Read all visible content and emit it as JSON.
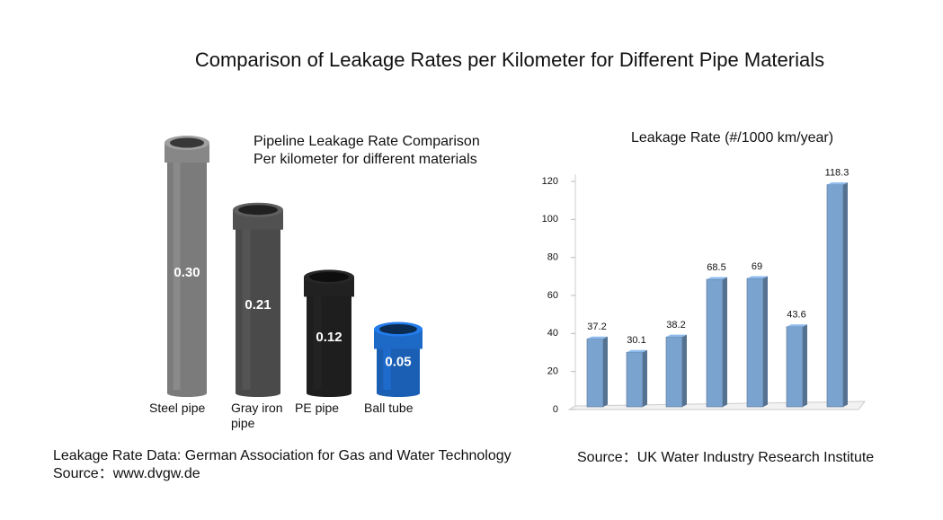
{
  "title": "Comparison of Leakage Rates per Kilometer for Different Pipe Materials",
  "chart_data": [
    {
      "type": "pipes",
      "title": "Pipeline Leakage Rate Comparison",
      "subtitle": "Per kilometer for different materials",
      "categories": [
        "Steel pipe",
        "Gray iron pipe",
        "PE pipe",
        "Ball tube"
      ],
      "values": [
        0.3,
        0.21,
        0.12,
        0.05
      ],
      "value_labels": [
        "0.30",
        "0.21",
        "0.12",
        "0.05"
      ],
      "colors": [
        "#7b7b7b",
        "#4a4a4a",
        "#1e1e1e",
        "#1a5fb4"
      ],
      "source_lines": [
        "Leakage Rate Data: German Association for Gas and Water Technology",
        "Source：www.dvgw.de"
      ]
    },
    {
      "type": "bar3d",
      "title": "Leakage Rate (#/1000 km/year)",
      "categories": [
        null,
        null,
        null,
        null,
        null,
        null,
        null
      ],
      "values": [
        37.2,
        30.1,
        38.2,
        68.5,
        69,
        43.6,
        118.3
      ],
      "color": "#7ba3cf",
      "ylim": [
        0,
        120
      ],
      "yticks": [
        0,
        20,
        40,
        60,
        80,
        100,
        120
      ],
      "source": "Source：UK Water Industry Research Institute"
    }
  ]
}
